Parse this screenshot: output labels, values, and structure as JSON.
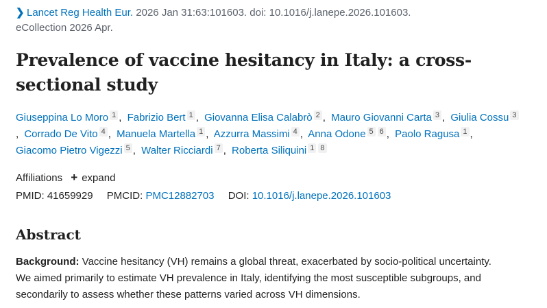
{
  "citation": {
    "journal": "Lancet Reg Health Eur.",
    "details": "2026 Jan 31:63:101603. doi: 10.1016/j.lanepe.2026.101603.",
    "ecollection": "eCollection 2026 Apr."
  },
  "title": "Prevalence of vaccine hesitancy in Italy: a cross-sectional study",
  "authors": [
    {
      "name": "Giuseppina Lo Moro",
      "sups": [
        "1"
      ]
    },
    {
      "name": "Fabrizio Bert",
      "sups": [
        "1"
      ]
    },
    {
      "name": "Giovanna Elisa Calabrò",
      "sups": [
        "2"
      ]
    },
    {
      "name": "Mauro Giovanni Carta",
      "sups": [
        "3"
      ]
    },
    {
      "name": "Giulia Cossu",
      "sups": [
        "3"
      ]
    },
    {
      "name": "Corrado De Vito",
      "sups": [
        "4"
      ]
    },
    {
      "name": "Manuela Martella",
      "sups": [
        "1"
      ]
    },
    {
      "name": "Azzurra Massimi",
      "sups": [
        "4"
      ]
    },
    {
      "name": "Anna Odone",
      "sups": [
        "5",
        "6"
      ]
    },
    {
      "name": "Paolo Ragusa",
      "sups": [
        "1"
      ]
    },
    {
      "name": "Giacomo Pietro Vigezzi",
      "sups": [
        "5"
      ]
    },
    {
      "name": "Walter Ricciardi",
      "sups": [
        "7"
      ]
    },
    {
      "name": "Roberta Siliquini",
      "sups": [
        "1",
        "8"
      ]
    }
  ],
  "affiliations": {
    "label": "Affiliations",
    "expand": "expand"
  },
  "ids": {
    "pmid_label": "PMID:",
    "pmid": "41659929",
    "pmcid_label": "PMCID:",
    "pmcid": "PMC12882703",
    "doi_label": "DOI:",
    "doi": "10.1016/j.lanepe.2026.101603"
  },
  "abstract": {
    "heading": "Abstract",
    "background_label": "Background:",
    "background_text": " Vaccine hesitancy (VH) remains a global threat, exacerbated by socio-political uncertainty. We aimed primarily to estimate VH prevalence in Italy, identifying the most susceptible subgroups, and secondarily to assess whether these patterns varied across VH dimensions."
  }
}
